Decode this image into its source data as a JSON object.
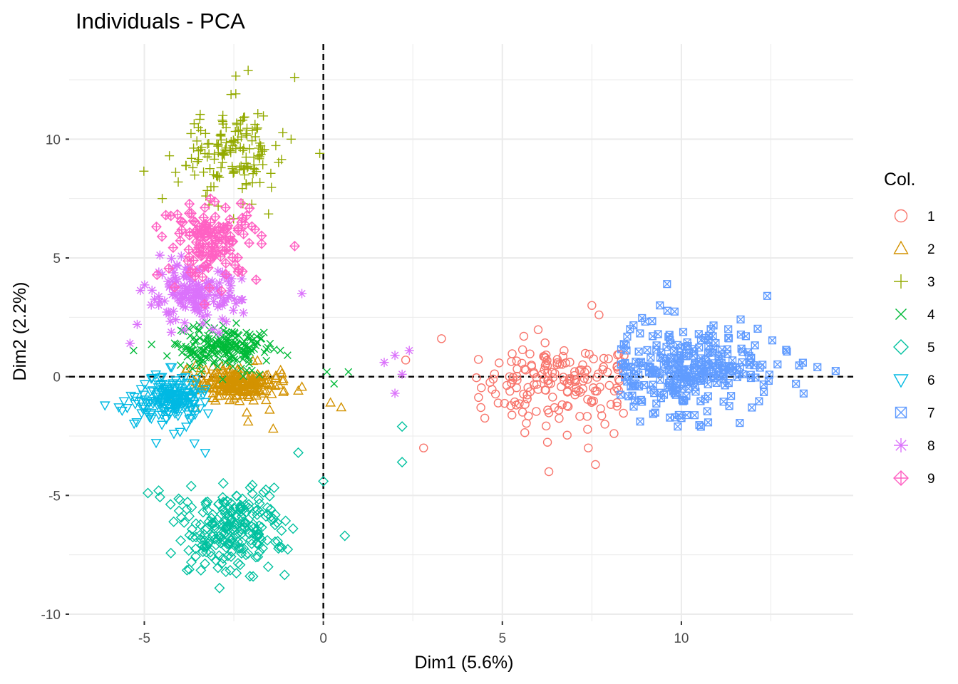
{
  "chart_data": {
    "type": "scatter",
    "title": "Individuals - PCA",
    "xlabel": "Dim1 (5.6%)",
    "ylabel": "Dim2 (2.2%)",
    "xlim": [
      -7.1,
      14.8
    ],
    "ylim": [
      -10.3,
      14.0
    ],
    "x_ticks": [
      -5,
      0,
      5,
      10
    ],
    "y_ticks": [
      -10,
      -5,
      0,
      5,
      10
    ],
    "grid": true,
    "reference_lines": {
      "x": 0,
      "y": 0,
      "style": "dashed"
    },
    "legend": {
      "title": "Col.",
      "position": "right",
      "entries": [
        {
          "label": "1",
          "color": "#F8766D",
          "shape": "circle"
        },
        {
          "label": "2",
          "color": "#D39200",
          "shape": "triangle-up"
        },
        {
          "label": "3",
          "color": "#93AA00",
          "shape": "plus"
        },
        {
          "label": "4",
          "color": "#00BA38",
          "shape": "cross"
        },
        {
          "label": "5",
          "color": "#00C19F",
          "shape": "diamond"
        },
        {
          "label": "6",
          "color": "#00B9E3",
          "shape": "triangle-down"
        },
        {
          "label": "7",
          "color": "#619CFF",
          "shape": "square-cross"
        },
        {
          "label": "8",
          "color": "#DB72FB",
          "shape": "asterisk"
        },
        {
          "label": "9",
          "color": "#FF61C3",
          "shape": "diamond-plus"
        }
      ]
    },
    "series": [
      {
        "name": "1",
        "cluster": {
          "cx": 6.6,
          "cy": -0.4,
          "sx": 1.1,
          "sy": 0.9,
          "n": 170,
          "xmin": 2.6,
          "xmax": 8.4
        },
        "points": [
          [
            3.3,
            1.6
          ],
          [
            2.8,
            -3.0
          ],
          [
            5.6,
            1.7
          ],
          [
            7.5,
            3.0
          ],
          [
            7.7,
            2.6
          ],
          [
            6.3,
            -4.0
          ],
          [
            7.6,
            -3.7
          ],
          [
            4.4,
            -1.3
          ],
          [
            2.3,
            0.7
          ],
          [
            7.4,
            -3.0
          ]
        ]
      },
      {
        "name": "2",
        "cluster": {
          "cx": -2.4,
          "cy": -0.3,
          "sx": 0.55,
          "sy": 0.35,
          "n": 220
        },
        "points": [
          [
            0.2,
            -1.1
          ],
          [
            0.5,
            -1.3
          ],
          [
            -1.4,
            -2.2
          ],
          [
            -2.1,
            -1.9
          ],
          [
            -1.5,
            -1.4
          ],
          [
            -0.7,
            -0.6
          ],
          [
            -1.1,
            -0.6
          ]
        ]
      },
      {
        "name": "3",
        "cluster": {
          "cx": -2.6,
          "cy": 9.5,
          "sx": 0.6,
          "sy": 1.0,
          "n": 150
        },
        "points": [
          [
            -2.1,
            12.9
          ],
          [
            -0.8,
            12.6
          ],
          [
            -4.3,
            9.3
          ],
          [
            -0.1,
            9.4
          ],
          [
            -4.5,
            7.5
          ],
          [
            -0.9,
            10.0
          ]
        ]
      },
      {
        "name": "4",
        "cluster": {
          "cx": -2.8,
          "cy": 1.2,
          "sx": 0.7,
          "sy": 0.45,
          "n": 200
        },
        "points": [
          [
            0.1,
            0.2
          ],
          [
            0.7,
            0.2
          ],
          [
            0.3,
            -0.3
          ],
          [
            -5.3,
            1.1
          ],
          [
            -1.2,
            1.1
          ],
          [
            -1.0,
            0.9
          ]
        ]
      },
      {
        "name": "5",
        "cluster": {
          "cx": -2.6,
          "cy": -6.5,
          "sx": 0.75,
          "sy": 0.85,
          "n": 230
        },
        "points": [
          [
            -4.9,
            -4.9
          ],
          [
            -4.6,
            -4.8
          ],
          [
            0.0,
            -4.4
          ],
          [
            0.6,
            -6.7
          ],
          [
            2.2,
            -2.1
          ],
          [
            2.2,
            -3.6
          ],
          [
            -0.7,
            -3.2
          ],
          [
            -2.9,
            -8.9
          ]
        ]
      },
      {
        "name": "6",
        "cluster": {
          "cx": -4.3,
          "cy": -0.9,
          "sx": 0.45,
          "sy": 0.5,
          "n": 180
        },
        "points": [
          [
            -6.1,
            -1.2
          ],
          [
            -3.6,
            -2.8
          ],
          [
            -3.3,
            -3.2
          ]
        ]
      },
      {
        "name": "7",
        "cluster": {
          "cx": 10.3,
          "cy": 0.3,
          "sx": 1.2,
          "sy": 0.9,
          "n": 280,
          "xmin": 8.3
        },
        "points": [
          [
            9.6,
            3.9
          ],
          [
            12.4,
            3.4
          ],
          [
            13.8,
            0.4
          ],
          [
            13.2,
            -0.3
          ],
          [
            9.4,
            3.0
          ],
          [
            9.9,
            -2.1
          ]
        ]
      },
      {
        "name": "8",
        "cluster": {
          "cx": -3.6,
          "cy": 3.4,
          "sx": 0.65,
          "sy": 0.6,
          "n": 150
        },
        "points": [
          [
            1.7,
            0.6
          ],
          [
            2.0,
            0.9
          ],
          [
            2.4,
            1.1
          ],
          [
            2.2,
            0.1
          ],
          [
            2.0,
            -0.7
          ],
          [
            -0.6,
            3.5
          ],
          [
            -5.4,
            1.4
          ],
          [
            -5.2,
            2.2
          ]
        ]
      },
      {
        "name": "9",
        "cluster": {
          "cx": -3.1,
          "cy": 5.7,
          "sx": 0.65,
          "sy": 0.8,
          "n": 130
        },
        "points": [
          [
            -0.8,
            5.5
          ],
          [
            -4.4,
            6.8
          ],
          [
            -2.3,
            7.3
          ]
        ]
      }
    ]
  }
}
